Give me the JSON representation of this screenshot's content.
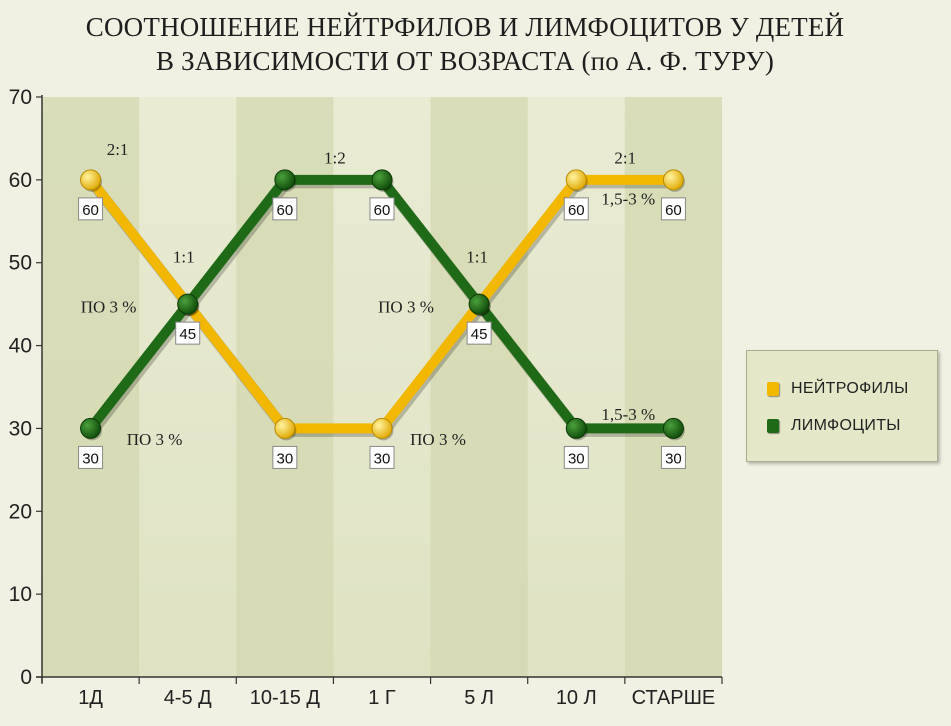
{
  "title": {
    "line1": "СООТНОШЕНИЕ НЕЙТРФИЛОВ И ЛИМФОЦИТОВ У ДЕТЕЙ",
    "line2": "В ЗАВИСИМОСТИ ОТ ВОЗРАСТА  (по А. Ф. ТУРУ)"
  },
  "chart_data": {
    "type": "line",
    "categories": [
      "1Д",
      "4-5 Д",
      "10-15 Д",
      "1 Г",
      "5 Л",
      "10 Л",
      "СТАРШЕ"
    ],
    "ylim": [
      0,
      70
    ],
    "yticks": [
      0,
      10,
      20,
      30,
      40,
      50,
      60,
      70
    ],
    "grid": false,
    "legend_position": "right",
    "series": [
      {
        "name": "НЕЙТРОФИЛЫ",
        "color": "#f2b800",
        "values": [
          60,
          45,
          30,
          30,
          45,
          60,
          60
        ]
      },
      {
        "name": "ЛИМФОЦИТЫ",
        "color": "#1f6a16",
        "values": [
          30,
          45,
          60,
          60,
          45,
          30,
          30
        ]
      }
    ],
    "data_labels": [
      {
        "category": "1Д",
        "value": 60,
        "text": "60"
      },
      {
        "category": "1Д",
        "value": 30,
        "text": "30"
      },
      {
        "category": "4-5 Д",
        "value": 45,
        "text": "45"
      },
      {
        "category": "10-15 Д",
        "value": 60,
        "text": "60"
      },
      {
        "category": "10-15 Д",
        "value": 30,
        "text": "30"
      },
      {
        "category": "1 Г",
        "value": 60,
        "text": "60"
      },
      {
        "category": "1 Г",
        "value": 30,
        "text": "30"
      },
      {
        "category": "5 Л",
        "value": 45,
        "text": "45"
      },
      {
        "category": "10 Л",
        "value": 60,
        "text": "60"
      },
      {
        "category": "10 Л",
        "value": 30,
        "text": "30"
      },
      {
        "category": "СТАРШЕ",
        "value": 60,
        "text": "60"
      },
      {
        "category": "СТАРШЕ",
        "value": 30,
        "text": "30"
      }
    ],
    "annotations": [
      {
        "text": "2:1",
        "category": "1Д",
        "value": 63
      },
      {
        "text": "1:1",
        "category": "4-5 Д",
        "value": 50
      },
      {
        "text": "1:2",
        "category": "10-15 Д",
        "value": 62
      },
      {
        "text": "1:1",
        "category": "5 Л",
        "value": 50
      },
      {
        "text": "2:1",
        "category": "10 Л",
        "value": 62
      },
      {
        "text": "1,5-3 %",
        "category": "10 Л",
        "value": 57
      },
      {
        "text": "1,5-3 %",
        "category": "10 Л",
        "value": 31
      },
      {
        "text": "ПО 3 %",
        "category": "1Д",
        "value": 44
      },
      {
        "text": "ПО 3 %",
        "category": "1Д",
        "value": 28
      },
      {
        "text": "ПО 3 %",
        "category": "1 Г",
        "value": 44
      },
      {
        "text": "ПО 3 %",
        "category": "1 Г",
        "value": 28
      }
    ]
  }
}
